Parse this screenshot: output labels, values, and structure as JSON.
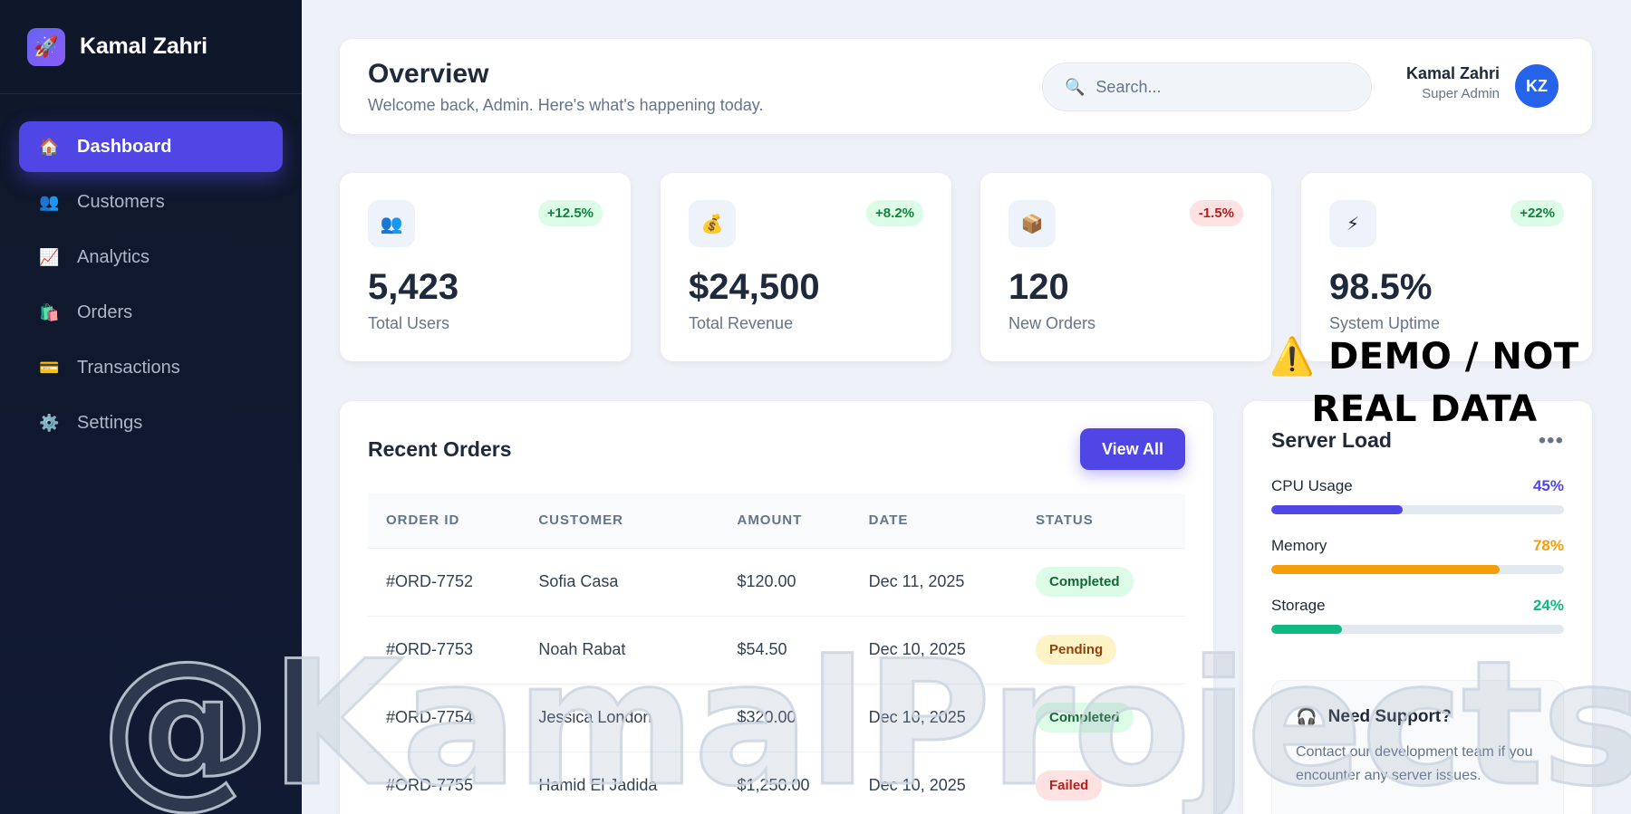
{
  "brand": {
    "logo_icon": "🚀",
    "name": "Kamal Zahri"
  },
  "sidebar": {
    "items": [
      {
        "icon": "🏠",
        "icon_name": "home-icon",
        "label": "Dashboard",
        "active": true
      },
      {
        "icon": "👥",
        "icon_name": "users-icon",
        "label": "Customers"
      },
      {
        "icon": "📈",
        "icon_name": "chart-icon",
        "label": "Analytics"
      },
      {
        "icon": "🛍️",
        "icon_name": "shopping-bag-icon",
        "label": "Orders"
      },
      {
        "icon": "💳",
        "icon_name": "credit-card-icon",
        "label": "Transactions"
      },
      {
        "icon": "⚙️",
        "icon_name": "gear-icon",
        "label": "Settings"
      }
    ]
  },
  "header": {
    "title": "Overview",
    "subtitle": "Welcome back, Admin. Here's what's happening today.",
    "search_placeholder": "Search...",
    "user_name": "Kamal Zahri",
    "user_role": "Super Admin",
    "avatar_initials": "KZ"
  },
  "stats": [
    {
      "icon": "👥",
      "value": "5,423",
      "label": "Total Users",
      "change": "+12.5%",
      "trend": "up"
    },
    {
      "icon": "💰",
      "value": "$24,500",
      "label": "Total Revenue",
      "change": "+8.2%",
      "trend": "up"
    },
    {
      "icon": "📦",
      "value": "120",
      "label": "New Orders",
      "change": "-1.5%",
      "trend": "down"
    },
    {
      "icon": "⚡",
      "value": "98.5%",
      "label": "System Uptime",
      "change": "+22%",
      "trend": "up"
    }
  ],
  "orders": {
    "title": "Recent Orders",
    "view_all_label": "View All",
    "columns": [
      "ORDER ID",
      "CUSTOMER",
      "AMOUNT",
      "DATE",
      "STATUS"
    ],
    "rows": [
      {
        "id": "#ORD-7752",
        "customer": "Sofia Casa",
        "amount": "$120.00",
        "date": "Dec 11, 2025",
        "status": "Completed"
      },
      {
        "id": "#ORD-7753",
        "customer": "Noah Rabat",
        "amount": "$54.50",
        "date": "Dec 10, 2025",
        "status": "Pending"
      },
      {
        "id": "#ORD-7754",
        "customer": "Jessica London",
        "amount": "$320.00",
        "date": "Dec 10, 2025",
        "status": "Completed"
      },
      {
        "id": "#ORD-7755",
        "customer": "Hamid El Jadida",
        "amount": "$1,250.00",
        "date": "Dec 10, 2025",
        "status": "Failed"
      }
    ]
  },
  "server_load": {
    "title": "Server Load",
    "menu_icon": "•••",
    "meters": [
      {
        "label": "CPU Usage",
        "value_text": "45%",
        "percent": 45,
        "color": "#4f46e5"
      },
      {
        "label": "Memory",
        "value_text": "78%",
        "percent": 78,
        "color": "#f59e0b"
      },
      {
        "label": "Storage",
        "value_text": "24%",
        "percent": 24,
        "color": "#10b981"
      }
    ],
    "support": {
      "icon": "🎧",
      "title": "Need Support?",
      "text": "Contact our development team if you encounter any server issues."
    }
  },
  "overlays": {
    "demo_banner": "⚠️ DEMO / NOT REAL DATA",
    "watermark": "@KamalProjects"
  }
}
